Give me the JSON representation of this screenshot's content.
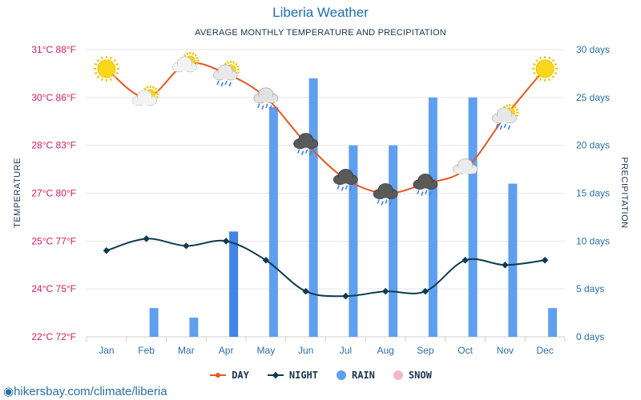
{
  "header": {
    "title": "Liberia Weather",
    "subtitle": "AVERAGE MONTHLY TEMPERATURE AND PRECIPITATION"
  },
  "legend": {
    "day": "DAY",
    "night": "NIGHT",
    "rain": "RAIN",
    "snow": "SNOW"
  },
  "watermark": "hikersbay.com/climate/liberia",
  "colors": {
    "day": "#e8561e",
    "night": "#0d3b4f",
    "rain": "#5f9ff0",
    "rain_highlight": "#3f84e6",
    "snow": "#f7b6c8",
    "left_axis": "#d81b60",
    "right_axis": "#2a6fa8",
    "grid": "#e6e6e6"
  },
  "chart_data": {
    "type": "line",
    "title": "Liberia Weather",
    "subtitle": "AVERAGE MONTHLY TEMPERATURE AND PRECIPITATION",
    "categories": [
      "Jan",
      "Feb",
      "Mar",
      "Apr",
      "May",
      "Jun",
      "Jul",
      "Aug",
      "Sep",
      "Oct",
      "Nov",
      "Dec"
    ],
    "ylabel_left": "TEMPERATURE",
    "ylabel_right": "PRECIPITATION",
    "y_left_ticks": [
      "31°C 88°F",
      "30°C 86°F",
      "28°C 83°F",
      "27°C 80°F",
      "25°C 77°F",
      "24°C 75°F",
      "22°C 72°F"
    ],
    "y_right_ticks": [
      "30 days",
      "25 days",
      "20 days",
      "15 days",
      "10 days",
      "5 days",
      "0 days"
    ],
    "ylim_right": [
      0,
      30
    ],
    "series": [
      {
        "name": "DAY",
        "axis": "temperature",
        "values": [
          30.6,
          30.0,
          30.7,
          30.5,
          30.0,
          28.1,
          27.3,
          27.0,
          27.2,
          27.5,
          29.2,
          30.6
        ],
        "weather_icons": [
          "sun",
          "sun-cloud",
          "sun-cloud",
          "sun-rain",
          "cloud-rain",
          "storm-rain",
          "storm-rain",
          "storm-rain",
          "storm-rain",
          "cloud",
          "sun-rain",
          "sun"
        ]
      },
      {
        "name": "NIGHT",
        "axis": "temperature",
        "values": [
          24.8,
          25.1,
          24.9,
          25.0,
          24.6,
          23.9,
          23.7,
          23.9,
          23.9,
          24.6,
          24.5,
          24.6
        ]
      },
      {
        "name": "RAIN",
        "axis": "precipitation",
        "unit": "days",
        "values": [
          0,
          3,
          2,
          11,
          24,
          27,
          20,
          20,
          25,
          25,
          16,
          3
        ],
        "highlighted_index": 3
      },
      {
        "name": "SNOW",
        "axis": "precipitation",
        "unit": "days",
        "values": [
          0,
          0,
          0,
          0,
          0,
          0,
          0,
          0,
          0,
          0,
          0,
          0
        ]
      }
    ],
    "grid": true,
    "legend_position": "bottom-center"
  }
}
